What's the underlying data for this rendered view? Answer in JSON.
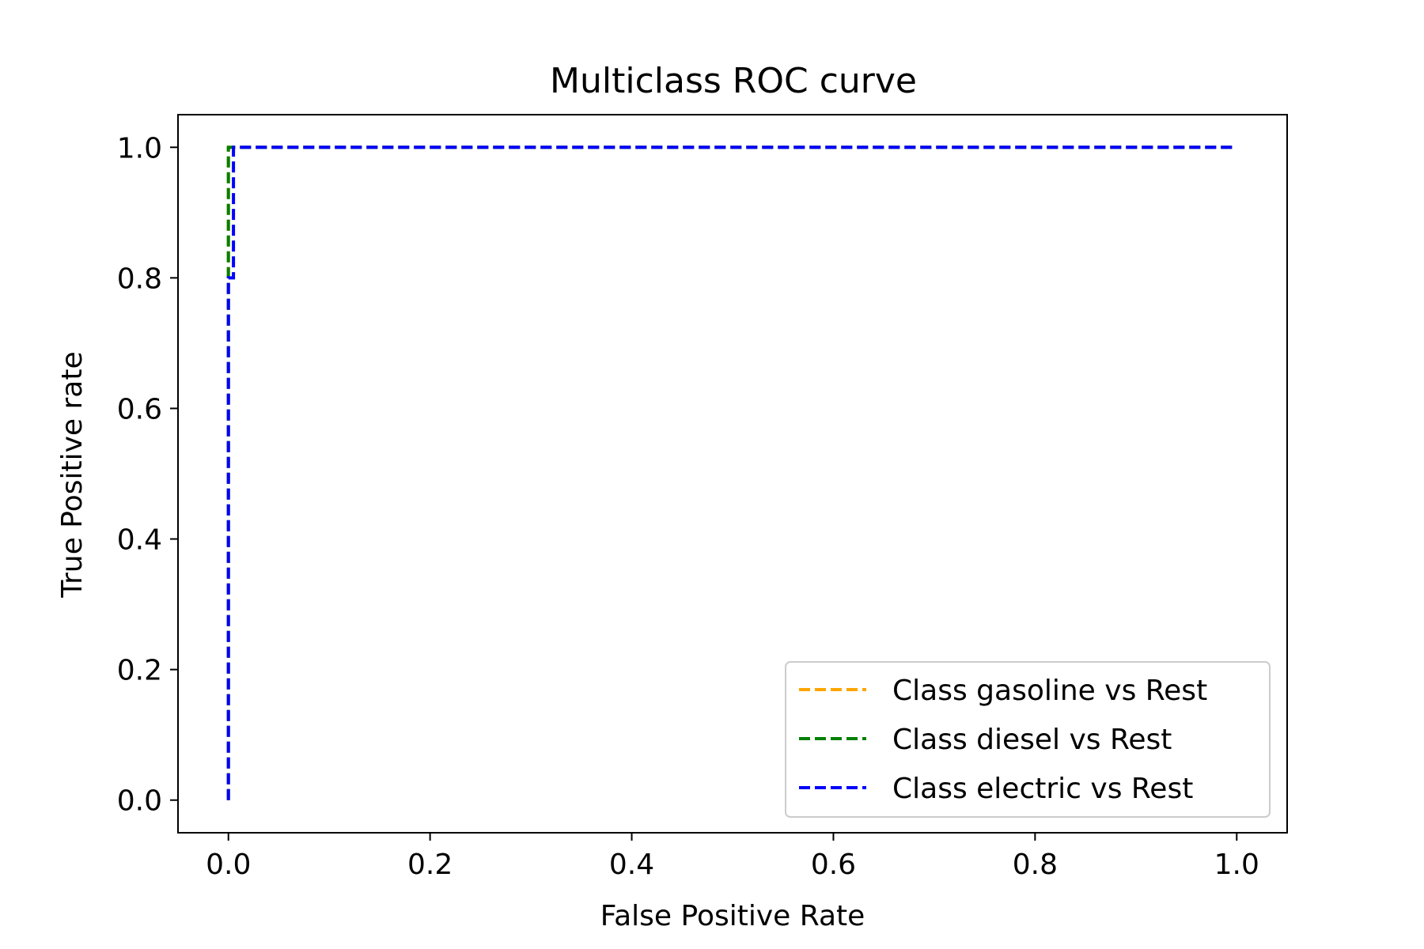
{
  "chart_data": {
    "type": "line",
    "title": "Multiclass ROC curve",
    "xlabel": "False Positive Rate",
    "ylabel": "True Positive rate",
    "xlim": [
      -0.05,
      1.05
    ],
    "ylim": [
      -0.05,
      1.05
    ],
    "xticks": [
      "0.0",
      "0.2",
      "0.4",
      "0.6",
      "0.8",
      "1.0"
    ],
    "yticks": [
      "0.0",
      "0.2",
      "0.4",
      "0.6",
      "0.8",
      "1.0"
    ],
    "grid": false,
    "legend_position": "lower-right",
    "series": [
      {
        "name": "Class gasoline vs Rest",
        "color": "#ffa500",
        "x": [
          0.0,
          0.0,
          0.0,
          1.0
        ],
        "y": [
          0.0,
          0.8,
          1.0,
          1.0
        ]
      },
      {
        "name": "Class diesel vs Rest",
        "color": "#008000",
        "x": [
          0.0,
          0.0,
          1.0
        ],
        "y": [
          0.0,
          1.0,
          1.0
        ]
      },
      {
        "name": "Class electric vs Rest",
        "color": "#0000ff",
        "x": [
          0.0,
          0.0,
          0.005,
          0.005,
          1.0
        ],
        "y": [
          0.0,
          0.8,
          0.8,
          1.0,
          1.0
        ]
      }
    ]
  }
}
